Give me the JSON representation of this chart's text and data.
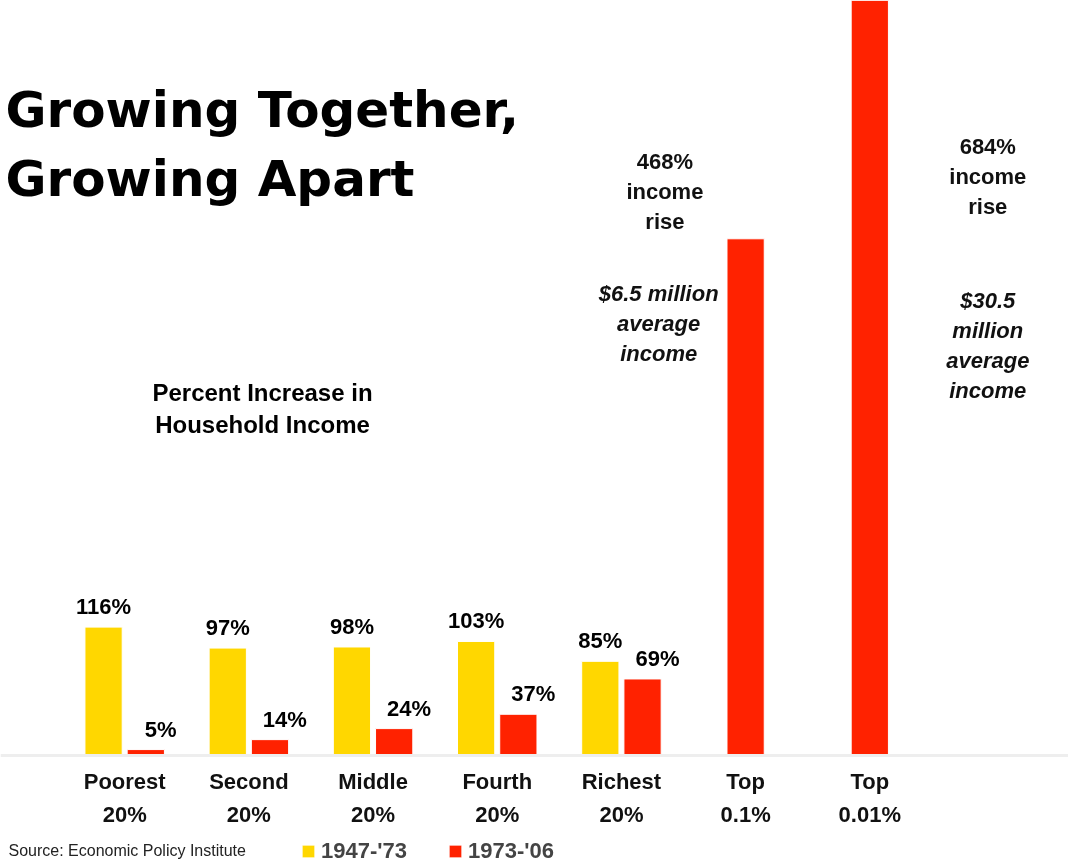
{
  "chart_data": {
    "type": "bar",
    "title": "Growing Together,\nGrowing Apart",
    "subtitle": "Percent Increase in\nHousehold Income",
    "categories": [
      "Poorest\n20%",
      "Second\n20%",
      "Middle\n20%",
      "Fourth\n20%",
      "Richest\n20%",
      "Top\n0.1%",
      "Top\n0.01%"
    ],
    "series": [
      {
        "name": "1947-'73",
        "color": "#ffd700",
        "values": [
          116,
          97,
          98,
          103,
          85,
          null,
          null
        ],
        "value_labels": [
          "116%",
          "97%",
          "98%",
          "103%",
          "85%",
          null,
          null
        ]
      },
      {
        "name": "1973-'06",
        "color": "#ff2200",
        "values": [
          5,
          14,
          24,
          37,
          69,
          468,
          684
        ],
        "value_labels": [
          "5%",
          "14%",
          "24%",
          "37%",
          "69%",
          null,
          null
        ]
      }
    ],
    "annotations": [
      "468%\nincome\nrise",
      "$6.5 million\naverage\nincome",
      "684%\nincome\nrise",
      "$30.5\nmillion\naverage\nincome",
      "Source: Economic Policy Institute"
    ],
    "legend": "bottom",
    "grid": false
  }
}
